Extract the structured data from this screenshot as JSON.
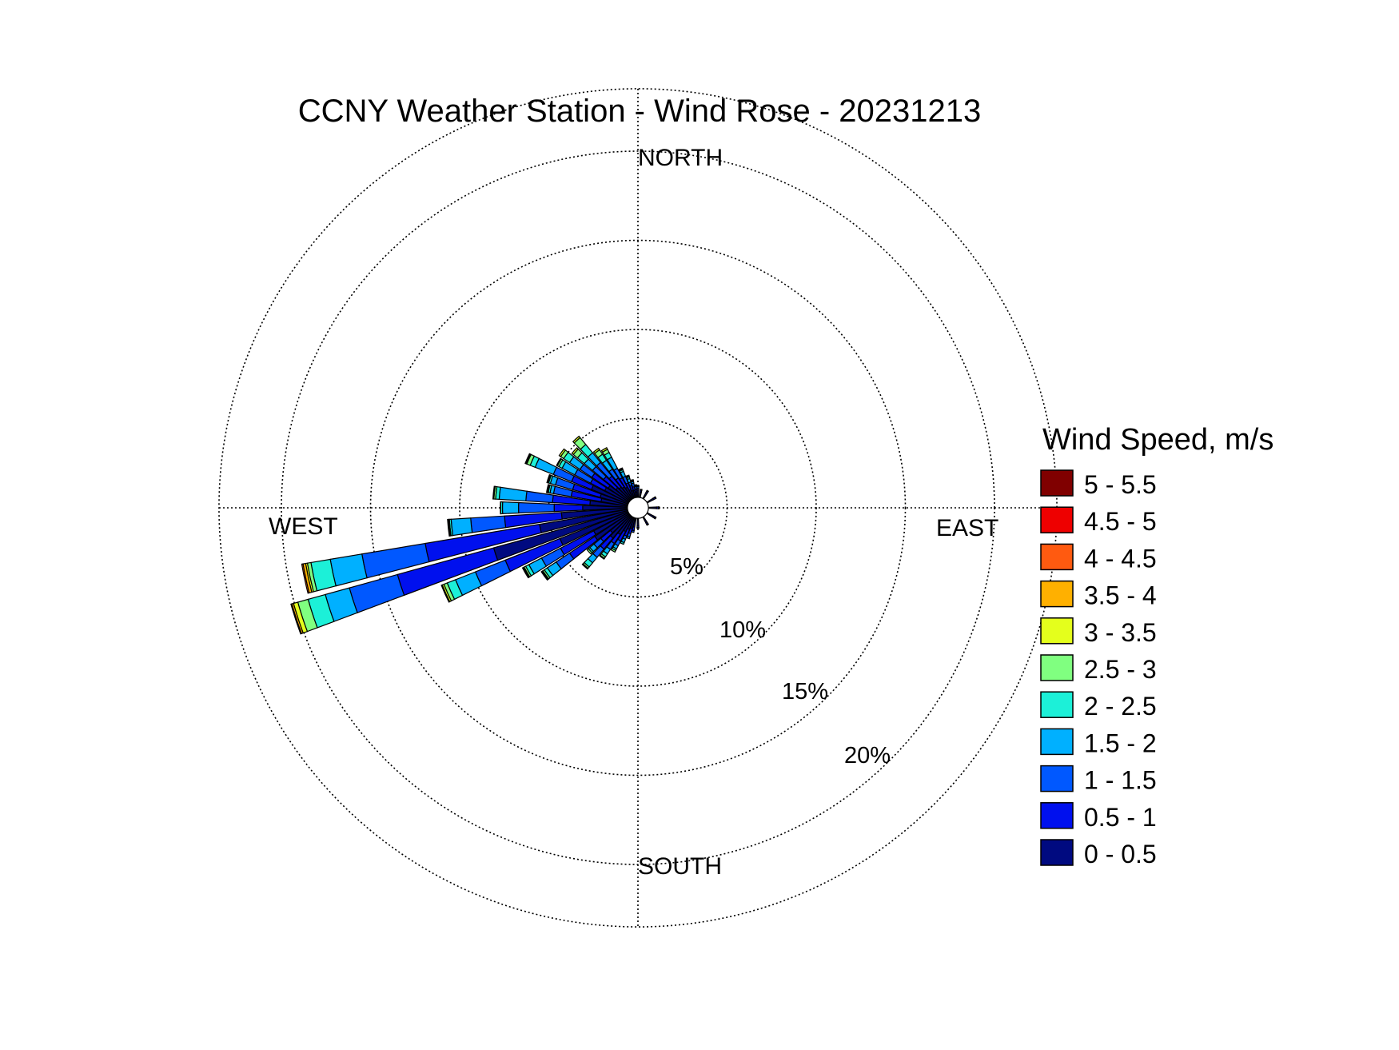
{
  "chart_data": {
    "type": "wind-rose",
    "title": "CCNY Weather Station - Wind Rose - 20231213",
    "direction_labels": {
      "north": "NORTH",
      "east": "EAST",
      "south": "SOUTH",
      "west": "WEST"
    },
    "radial_axis": {
      "unit": "%",
      "rings": [
        5,
        10,
        15,
        20
      ],
      "ring_labels": [
        "5%",
        "10%",
        "15%",
        "20%"
      ],
      "max": 20,
      "grid": true
    },
    "legend": {
      "title": "Wind Speed, m/s",
      "placement": "right",
      "bins": [
        {
          "label": "5 - 5.5",
          "color": "#800000"
        },
        {
          "label": "4.5 - 5",
          "color": "#ee0000"
        },
        {
          "label": "4 - 4.5",
          "color": "#ff5a10"
        },
        {
          "label": "3.5 - 4",
          "color": "#ffb000"
        },
        {
          "label": "3 - 3.5",
          "color": "#e4ff1c"
        },
        {
          "label": "2.5 - 3",
          "color": "#80ff80"
        },
        {
          "label": "2 - 2.5",
          "color": "#1cf0d8"
        },
        {
          "label": "1.5 - 2",
          "color": "#00b0ff"
        },
        {
          "label": "1 - 1.5",
          "color": "#0058ff"
        },
        {
          "label": "0.5 - 1",
          "color": "#0010ee"
        },
        {
          "label": "0 - 0.5",
          "color": "#000a80"
        }
      ]
    },
    "bin_colors_low_to_high": [
      "#000a80",
      "#0010ee",
      "#0058ff",
      "#00b0ff",
      "#1cf0d8",
      "#80ff80",
      "#e4ff1c",
      "#ffb000",
      "#ff5a10",
      "#ee0000",
      "#800000"
    ],
    "sector_width_deg": 5,
    "sectors": [
      {
        "direction_deg": 252,
        "cumulative_percent": [
          7.9,
          13.5,
          16.3,
          17.7,
          18.7,
          19.3,
          19.55,
          19.65,
          19.7,
          19.7,
          19.7
        ]
      },
      {
        "direction_deg": 258,
        "cumulative_percent": [
          5.1,
          11.6,
          15.2,
          17.0,
          18.1,
          18.3,
          18.4,
          18.55,
          18.62,
          18.62,
          18.62
        ]
      },
      {
        "direction_deg": 264,
        "cumulative_percent": [
          3.8,
          7.0,
          8.9,
          10.0,
          10.1,
          10.15,
          10.2,
          10.2,
          10.2,
          10.2,
          10.2
        ]
      },
      {
        "direction_deg": 270,
        "cumulative_percent": [
          2.6,
          4.2,
          6.2,
          7.1,
          7.2,
          7.2,
          7.22,
          7.22,
          7.22,
          7.22,
          7.22
        ]
      },
      {
        "direction_deg": 276,
        "cumulative_percent": [
          2.2,
          4.3,
          5.8,
          7.3,
          7.5,
          7.6,
          7.65,
          7.65,
          7.65,
          7.65,
          7.65
        ]
      },
      {
        "direction_deg": 282,
        "cumulative_percent": [
          1.6,
          3.3,
          4.3,
          4.5,
          4.6,
          4.65,
          4.7,
          4.7,
          4.7,
          4.7,
          4.7
        ]
      },
      {
        "direction_deg": 288,
        "cumulative_percent": [
          1.7,
          3.3,
          4.3,
          4.6,
          4.7,
          4.75,
          4.8,
          4.8,
          4.8,
          4.8,
          4.8
        ]
      },
      {
        "direction_deg": 294,
        "cumulative_percent": [
          2.3,
          3.5,
          4.6,
          5.7,
          6.0,
          6.2,
          6.25,
          6.3,
          6.3,
          6.3,
          6.3
        ]
      },
      {
        "direction_deg": 300,
        "cumulative_percent": [
          1.6,
          2.5,
          3.5,
          4.3,
          4.5,
          4.6,
          4.65,
          4.65,
          4.65,
          4.65,
          4.65
        ]
      },
      {
        "direction_deg": 306,
        "cumulative_percent": [
          1.5,
          2.6,
          3.4,
          4.1,
          4.5,
          4.7,
          4.8,
          4.8,
          4.8,
          4.8,
          4.8
        ]
      },
      {
        "direction_deg": 312,
        "cumulative_percent": [
          1.1,
          2.0,
          2.8,
          3.4,
          3.9,
          4.2,
          4.3,
          4.3,
          4.3,
          4.3,
          4.3
        ]
      },
      {
        "direction_deg": 318,
        "cumulative_percent": [
          1.0,
          1.8,
          2.8,
          3.5,
          4.1,
          4.6,
          4.7,
          4.7,
          4.7,
          4.7,
          4.7
        ]
      },
      {
        "direction_deg": 324,
        "cumulative_percent": [
          0.9,
          1.5,
          2.1,
          2.7,
          3.1,
          3.4,
          3.5,
          3.5,
          3.5,
          3.5,
          3.5
        ]
      },
      {
        "direction_deg": 330,
        "cumulative_percent": [
          0.8,
          1.4,
          2.0,
          2.7,
          3.0,
          3.2,
          3.3,
          3.3,
          3.3,
          3.3,
          3.3
        ]
      },
      {
        "direction_deg": 336,
        "cumulative_percent": [
          0.6,
          1.0,
          1.4,
          1.7,
          1.8,
          1.85,
          1.9,
          1.9,
          1.9,
          1.9,
          1.9
        ]
      },
      {
        "direction_deg": 342,
        "cumulative_percent": [
          0.5,
          0.8,
          1.0,
          1.2,
          1.3,
          1.35,
          1.4,
          1.4,
          1.4,
          1.4,
          1.4
        ]
      },
      {
        "direction_deg": 348,
        "cumulative_percent": [
          0.5,
          0.7,
          0.9,
          1.0,
          1.05,
          1.1,
          1.1,
          1.1,
          1.1,
          1.1,
          1.1
        ]
      },
      {
        "direction_deg": 354,
        "cumulative_percent": [
          0.4,
          0.55,
          0.7,
          0.75,
          0.8,
          0.8,
          0.8,
          0.8,
          0.8,
          0.8,
          0.8
        ]
      },
      {
        "direction_deg": 0,
        "cumulative_percent": [
          0.5,
          0.6,
          0.7,
          0.75,
          0.75,
          0.75,
          0.75,
          0.75,
          0.75,
          0.75,
          0.75
        ]
      },
      {
        "direction_deg": 10,
        "cumulative_percent": [
          0.4,
          0.5,
          0.55,
          0.55,
          0.55,
          0.55,
          0.55,
          0.55,
          0.55,
          0.55,
          0.55
        ]
      },
      {
        "direction_deg": 30,
        "cumulative_percent": [
          0.45,
          0.55,
          0.6,
          0.6,
          0.6,
          0.6,
          0.6,
          0.6,
          0.6,
          0.6,
          0.6
        ]
      },
      {
        "direction_deg": 60,
        "cumulative_percent": [
          0.5,
          0.6,
          0.65,
          0.65,
          0.65,
          0.65,
          0.65,
          0.65,
          0.65,
          0.65,
          0.65
        ]
      },
      {
        "direction_deg": 90,
        "cumulative_percent": [
          0.55,
          0.65,
          0.7,
          0.7,
          0.7,
          0.7,
          0.7,
          0.7,
          0.7,
          0.7,
          0.7
        ]
      },
      {
        "direction_deg": 120,
        "cumulative_percent": [
          0.5,
          0.6,
          0.65,
          0.65,
          0.65,
          0.65,
          0.65,
          0.65,
          0.65,
          0.65,
          0.65
        ]
      },
      {
        "direction_deg": 150,
        "cumulative_percent": [
          0.45,
          0.55,
          0.6,
          0.6,
          0.6,
          0.6,
          0.6,
          0.6,
          0.6,
          0.6,
          0.6
        ]
      },
      {
        "direction_deg": 180,
        "cumulative_percent": [
          0.5,
          0.6,
          0.65,
          0.65,
          0.65,
          0.65,
          0.65,
          0.65,
          0.65,
          0.65,
          0.65
        ]
      },
      {
        "direction_deg": 192,
        "cumulative_percent": [
          0.6,
          0.8,
          0.9,
          0.9,
          0.9,
          0.9,
          0.9,
          0.9,
          0.9,
          0.9,
          0.9
        ]
      },
      {
        "direction_deg": 198,
        "cumulative_percent": [
          0.7,
          1.0,
          1.2,
          1.3,
          1.3,
          1.3,
          1.3,
          1.3,
          1.3,
          1.3,
          1.3
        ]
      },
      {
        "direction_deg": 204,
        "cumulative_percent": [
          0.8,
          1.2,
          1.4,
          1.6,
          1.7,
          1.7,
          1.7,
          1.7,
          1.7,
          1.7,
          1.7
        ]
      },
      {
        "direction_deg": 210,
        "cumulative_percent": [
          1.0,
          1.6,
          1.9,
          2.1,
          2.2,
          2.3,
          2.3,
          2.3,
          2.3,
          2.3,
          2.3
        ]
      },
      {
        "direction_deg": 216,
        "cumulative_percent": [
          1.3,
          1.9,
          2.3,
          2.6,
          2.8,
          2.9,
          2.95,
          2.95,
          2.95,
          2.95,
          2.95
        ]
      },
      {
        "direction_deg": 222,
        "cumulative_percent": [
          1.7,
          2.5,
          3.1,
          3.5,
          3.8,
          3.9,
          3.95,
          3.95,
          3.95,
          3.95,
          3.95
        ]
      },
      {
        "direction_deg": 228,
        "cumulative_percent": [
          1.5,
          2.2,
          2.7,
          3.0,
          3.1,
          3.2,
          3.2,
          3.2,
          3.2,
          3.2,
          3.2
        ]
      },
      {
        "direction_deg": 234,
        "cumulative_percent": [
          2.4,
          4.1,
          5.0,
          5.6,
          5.8,
          5.9,
          5.95,
          6.0,
          6.0,
          6.0,
          6.0
        ]
      },
      {
        "direction_deg": 240,
        "cumulative_percent": [
          2.3,
          4.4,
          5.6,
          6.4,
          6.6,
          6.7,
          6.75,
          6.8,
          6.8,
          6.8,
          6.8
        ]
      },
      {
        "direction_deg": 246,
        "cumulative_percent": [
          4.2,
          7.5,
          9.3,
          10.5,
          11.0,
          11.2,
          11.3,
          11.35,
          11.35,
          11.35,
          11.35
        ]
      }
    ]
  }
}
